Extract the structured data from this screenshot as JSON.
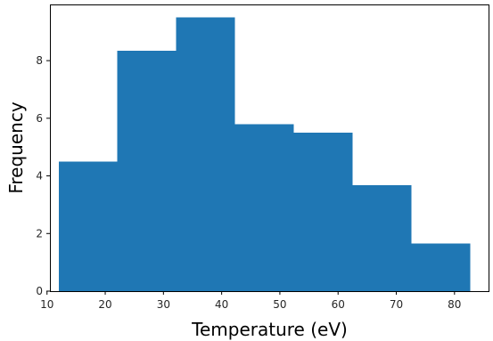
{
  "chart_data": {
    "type": "bar",
    "title": "",
    "xlabel": "Temperature (eV)",
    "ylabel": "Frequency",
    "bin_edges": [
      12,
      22.1,
      32.2,
      42.3,
      52.4,
      62.5,
      72.6,
      82.7
    ],
    "values": [
      4.5,
      8.35,
      9.5,
      5.8,
      5.5,
      3.68,
      1.65
    ],
    "xlim": [
      10.5,
      86
    ],
    "ylim": [
      0,
      9.95
    ],
    "xticks": [
      10,
      20,
      30,
      40,
      50,
      60,
      70,
      80
    ],
    "yticks": [
      0,
      2,
      4,
      6,
      8
    ],
    "bar_color": "#1f77b4",
    "grid": false,
    "legend": "none"
  }
}
